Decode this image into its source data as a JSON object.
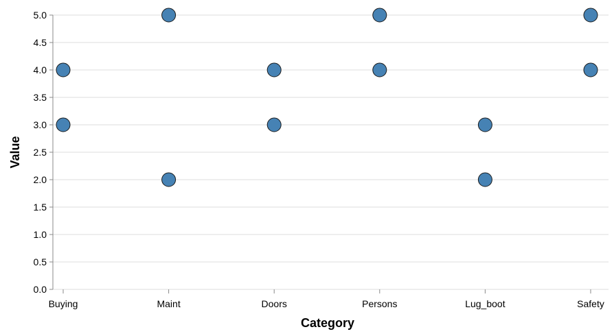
{
  "chart_data": {
    "type": "scatter",
    "title": "",
    "xlabel": "Category",
    "ylabel": "Value",
    "categories": [
      "Buying",
      "Maint",
      "Doors",
      "Persons",
      "Lug_boot",
      "Safety"
    ],
    "ylim": [
      0,
      5
    ],
    "yticks": [
      "0.0",
      "0.5",
      "1.0",
      "1.5",
      "2.0",
      "2.5",
      "3.0",
      "3.5",
      "4.0",
      "4.5",
      "5.0"
    ],
    "grid": true,
    "points": [
      {
        "x": "Buying",
        "y": 4
      },
      {
        "x": "Buying",
        "y": 3
      },
      {
        "x": "Maint",
        "y": 5
      },
      {
        "x": "Maint",
        "y": 2
      },
      {
        "x": "Doors",
        "y": 4
      },
      {
        "x": "Doors",
        "y": 3
      },
      {
        "x": "Persons",
        "y": 5
      },
      {
        "x": "Persons",
        "y": 4
      },
      {
        "x": "Lug_boot",
        "y": 3
      },
      {
        "x": "Lug_boot",
        "y": 2
      },
      {
        "x": "Safety",
        "y": 5
      },
      {
        "x": "Safety",
        "y": 4
      }
    ],
    "colors": {
      "point_fill": "#4682b4",
      "point_stroke": "#1a1a1a",
      "grid": "#dddddd",
      "axis": "#888888"
    }
  }
}
